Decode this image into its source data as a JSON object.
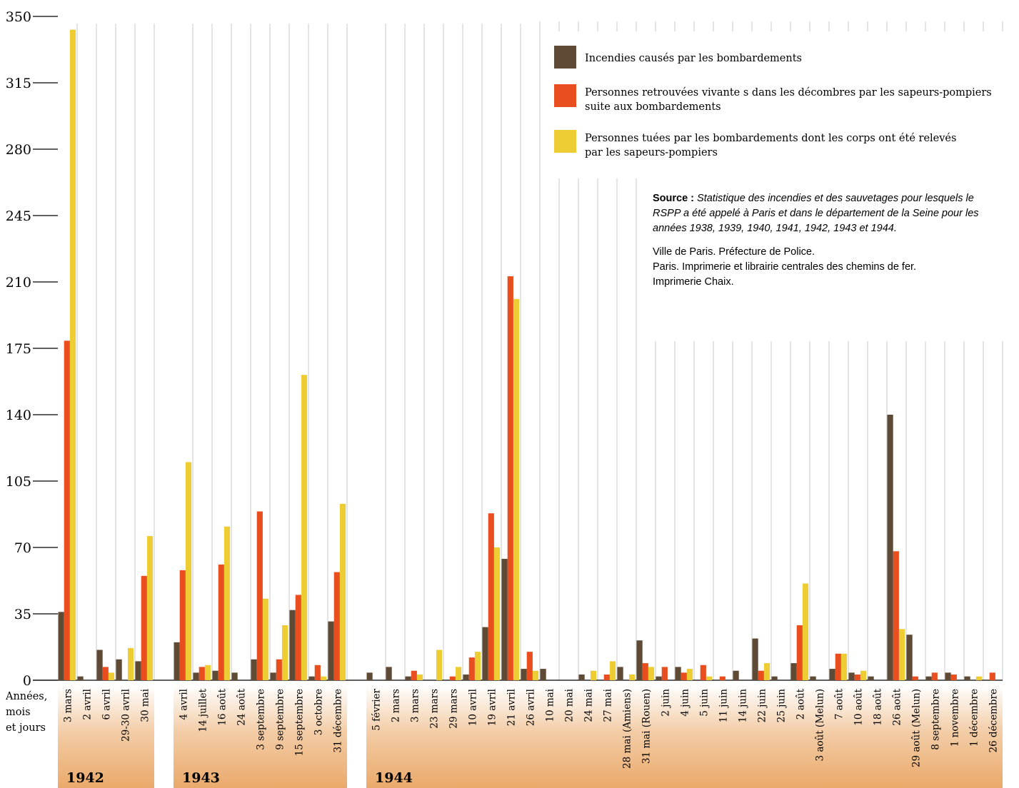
{
  "chart_data": {
    "type": "bar",
    "ylim": [
      0,
      350
    ],
    "yticks": [
      "0",
      "35",
      "70",
      "105",
      "140",
      "175",
      "210",
      "245",
      "280",
      "315",
      "350"
    ],
    "xlabel_lines": [
      "Années,",
      "mois",
      "et jours"
    ],
    "groups": [
      {
        "year": "1942",
        "categories": [
          "3 mars",
          "2 avril",
          "6 avril",
          "29-30 avril",
          "30 mai"
        ]
      },
      {
        "year": "1943",
        "categories": [
          "4 avril",
          "14 juillet",
          "16 août",
          "24 août",
          "3 septembre",
          "9 septembre",
          "15 septembre",
          "3 octobre",
          "31 décembre"
        ]
      },
      {
        "year": "1944",
        "categories": [
          "5 février",
          "2 mars",
          "3 mars",
          "23 mars",
          "29 mars",
          "10 avril",
          "19 avril",
          "21 avril",
          "26 avril",
          "10 mai",
          "20 mai",
          "24 mai",
          "27 mai",
          "28 mai (Amiens)",
          "31 mai (Rouen)",
          "2 juin",
          "4 juin",
          "5 juin",
          "11 juin",
          "14 juin",
          "22 juin",
          "25 juin",
          "2 août",
          "3 août (Melun)",
          "7 août",
          "10 août",
          "18 août",
          "26 août",
          "29 août (Melun)",
          "8 septembre",
          "1 novembre",
          "1 décembre",
          "26 décembre"
        ]
      }
    ],
    "series": [
      {
        "name": "Incendies causés par les bombardements",
        "color": "#5e4a35",
        "values": [
          36,
          2,
          16,
          11,
          10,
          20,
          4,
          5,
          4,
          11,
          4,
          37,
          2,
          31,
          4,
          7,
          2,
          0,
          0,
          3,
          28,
          64,
          6,
          6,
          0,
          3,
          0,
          7,
          21,
          2,
          7,
          0,
          0,
          5,
          22,
          2,
          9,
          2,
          6,
          4,
          2,
          140,
          24,
          2,
          4,
          2,
          0
        ]
      },
      {
        "name": "Personnes retrouvées vivante s dans les décombres par les sapeurs-pompiers suite aux bombardements",
        "color": "#e94e1f",
        "values": [
          179,
          0,
          7,
          0,
          55,
          58,
          7,
          61,
          0,
          89,
          11,
          45,
          8,
          57,
          0,
          0,
          5,
          0,
          2,
          12,
          88,
          213,
          15,
          0,
          0,
          0,
          3,
          0,
          9,
          7,
          4,
          8,
          2,
          0,
          5,
          0,
          29,
          0,
          14,
          3,
          0,
          68,
          2,
          4,
          3,
          0,
          4
        ]
      },
      {
        "name": "Personnes tuées par les bombardements dont les corps ont été relevés par les sapeurs-pompiers",
        "color": "#eecd34",
        "values": [
          343,
          0,
          4,
          17,
          76,
          115,
          8,
          81,
          0,
          43,
          29,
          161,
          2,
          93,
          0,
          0,
          3,
          16,
          7,
          15,
          70,
          201,
          5,
          0,
          0,
          5,
          10,
          3,
          7,
          0,
          6,
          2,
          0,
          0,
          9,
          0,
          51,
          0,
          14,
          5,
          0,
          27,
          0,
          0,
          0,
          2,
          0
        ]
      }
    ],
    "legend": [
      {
        "label_lines": [
          "Incendies causés par les bombardements"
        ]
      },
      {
        "label_lines": [
          "Personnes retrouvées vivante s dans les décombres par les sapeurs-pompiers",
          "suite aux bombardements"
        ]
      },
      {
        "label_lines": [
          "Personnes tuées par les bombardements dont les corps ont été relevés",
          "par les sapeurs-pompiers"
        ]
      }
    ],
    "legend_placement": "top-right",
    "grid": "vertical separators between dates",
    "band_color": "#eaa96a"
  },
  "source": {
    "label": "Source :",
    "title": "Statistique des incendies et des sauvetages pour lesquels le RSPP a été appelé à Paris et dans le département de la Seine pour les années 1938, 1939, 1940, 1941, 1942, 1943 et 1944.",
    "lines": [
      "Ville de Paris. Préfecture de Police.",
      "Paris. Imprimerie et librairie centrales des chemins de fer.",
      "Imprimerie Chaix."
    ]
  }
}
